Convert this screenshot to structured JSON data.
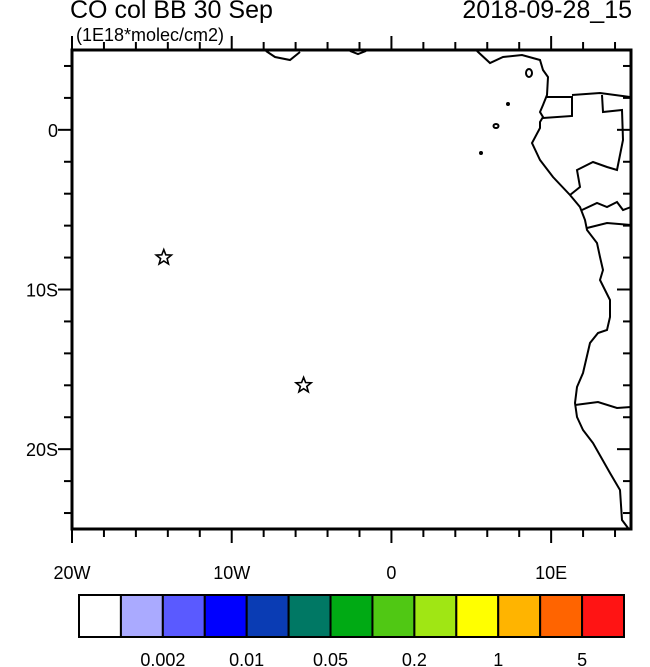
{
  "title": "CO col BB 30 Sep",
  "units": "(1E18*molec/cm2)",
  "datetime": "2018-09-28_15",
  "map": {
    "lon_range": [
      -20,
      15
    ],
    "lat_range": [
      -25,
      5
    ],
    "lon_ticks": [
      {
        "value": -20,
        "label": "20W"
      },
      {
        "value": -10,
        "label": "10W"
      },
      {
        "value": 0,
        "label": "0"
      },
      {
        "value": 10,
        "label": "10E"
      }
    ],
    "lat_ticks": [
      {
        "value": 0,
        "label": "0"
      },
      {
        "value": -10,
        "label": "10S"
      },
      {
        "value": -20,
        "label": "20S"
      }
    ],
    "markers": [
      {
        "type": "star",
        "lon": -14.25,
        "lat": -8.0
      },
      {
        "type": "star",
        "lon": -5.5,
        "lat": -16.0
      }
    ]
  },
  "colorbar": {
    "colors": [
      "#ffffff",
      "#aaaaff",
      "#5a5aff",
      "#0000ff",
      "#0a3cb4",
      "#007864",
      "#00aa14",
      "#50c814",
      "#a0e614",
      "#ffff00",
      "#ffb400",
      "#ff6400",
      "#ff1414"
    ],
    "labels": [
      {
        "boundary": 2,
        "text": "0.002"
      },
      {
        "boundary": 4,
        "text": "0.01"
      },
      {
        "boundary": 6,
        "text": "0.05"
      },
      {
        "boundary": 8,
        "text": "0.2"
      },
      {
        "boundary": 10,
        "text": "1"
      },
      {
        "boundary": 12,
        "text": "5"
      }
    ]
  }
}
